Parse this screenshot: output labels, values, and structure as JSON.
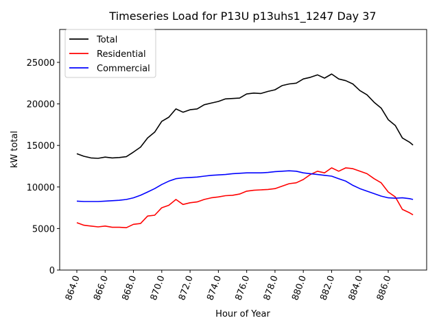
{
  "chart_data": {
    "type": "line",
    "title": "Timeseries Load for P13U p13uhs1_1247  Day 37",
    "xlabel": "Hour of Year",
    "ylabel": "kW total",
    "xlim": [
      862.8,
      888.5
    ],
    "ylim": [
      0,
      29000
    ],
    "grid": false,
    "legend_position": "top-left",
    "x_ticks": [
      864,
      866,
      868,
      870,
      872,
      874,
      876,
      878,
      880,
      882,
      884,
      886
    ],
    "x_tick_labels": [
      "864.0",
      "866.0",
      "868.0",
      "870.0",
      "872.0",
      "874.0",
      "876.0",
      "878.0",
      "880.0",
      "882.0",
      "884.0",
      "886.0"
    ],
    "y_ticks": [
      0,
      5000,
      10000,
      15000,
      20000,
      25000
    ],
    "y_tick_labels": [
      "0",
      "5000",
      "10000",
      "15000",
      "20000",
      "25000"
    ],
    "x": [
      864.0,
      864.5,
      865.0,
      865.5,
      866.0,
      866.5,
      867.0,
      867.5,
      868.0,
      868.5,
      869.0,
      869.5,
      870.0,
      870.5,
      871.0,
      871.5,
      872.0,
      872.5,
      873.0,
      873.5,
      874.0,
      874.5,
      875.0,
      875.5,
      876.0,
      876.5,
      877.0,
      877.5,
      878.0,
      878.5,
      879.0,
      879.5,
      880.0,
      880.5,
      881.0,
      881.5,
      882.0,
      882.5,
      883.0,
      883.5,
      884.0,
      884.5,
      885.0,
      885.5,
      886.0,
      886.5,
      887.0,
      887.5,
      887.75
    ],
    "series": [
      {
        "name": "Total",
        "color": "#000000",
        "values": [
          14000,
          13700,
          13500,
          13450,
          13600,
          13500,
          13550,
          13650,
          14200,
          14800,
          15900,
          16600,
          17900,
          18400,
          19400,
          19000,
          19300,
          19400,
          19900,
          20100,
          20300,
          20600,
          20650,
          20700,
          21200,
          21300,
          21250,
          21500,
          21700,
          22200,
          22400,
          22500,
          23000,
          23200,
          23500,
          23100,
          23600,
          23000,
          22800,
          22400,
          21600,
          21100,
          20200,
          19500,
          18100,
          17400,
          15900,
          15400,
          15050
        ]
      },
      {
        "name": "Residential",
        "color": "#ff0000",
        "values": [
          5700,
          5400,
          5300,
          5200,
          5300,
          5150,
          5150,
          5100,
          5500,
          5600,
          6500,
          6600,
          7500,
          7800,
          8500,
          7900,
          8100,
          8200,
          8500,
          8700,
          8800,
          8950,
          9000,
          9150,
          9500,
          9600,
          9650,
          9700,
          9800,
          10100,
          10400,
          10500,
          10900,
          11500,
          11900,
          11700,
          12300,
          11900,
          12300,
          12200,
          11900,
          11600,
          11000,
          10500,
          9400,
          8800,
          7300,
          6900,
          6650
        ]
      },
      {
        "name": "Commercial",
        "color": "#0000ff",
        "values": [
          8300,
          8250,
          8250,
          8250,
          8300,
          8350,
          8400,
          8500,
          8700,
          9000,
          9400,
          9800,
          10300,
          10700,
          11000,
          11100,
          11150,
          11200,
          11300,
          11400,
          11450,
          11500,
          11600,
          11650,
          11700,
          11700,
          11700,
          11750,
          11850,
          11900,
          11950,
          11900,
          11700,
          11600,
          11500,
          11400,
          11300,
          11000,
          10700,
          10200,
          9800,
          9500,
          9200,
          8900,
          8700,
          8650,
          8700,
          8600,
          8500
        ]
      }
    ]
  }
}
